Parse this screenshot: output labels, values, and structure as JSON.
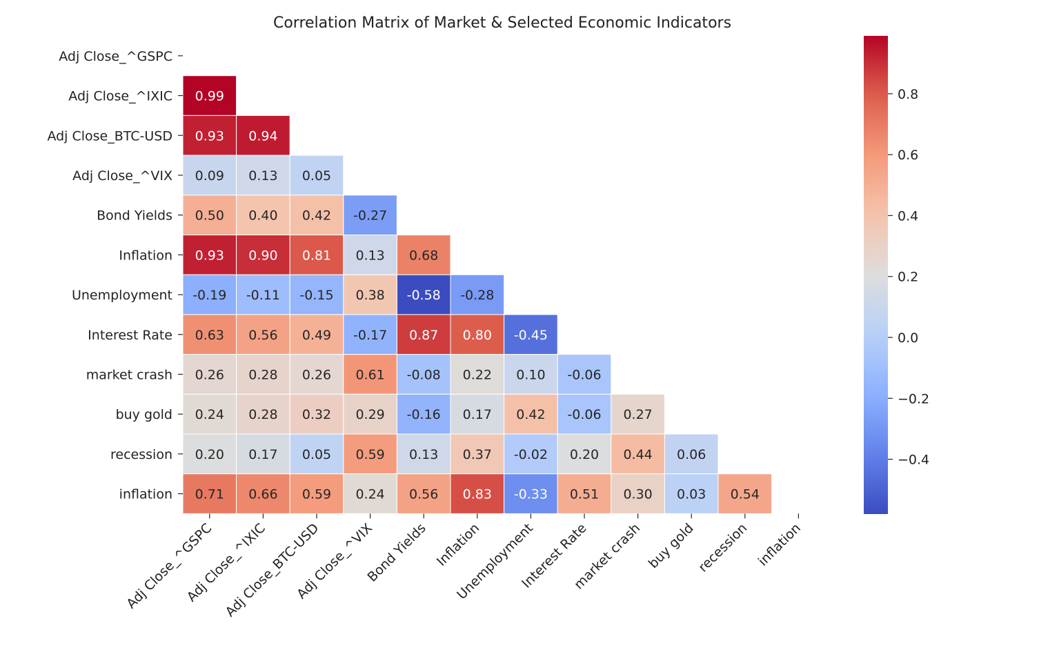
{
  "chart_data": {
    "type": "heatmap",
    "title": "Correlation Matrix of Market & Selected Economic Indicators",
    "labels": [
      "Adj Close_^GSPC",
      "Adj Close_^IXIC",
      "Adj Close_BTC-USD",
      "Adj Close_^VIX",
      "Bond Yields",
      "Inflation",
      "Unemployment",
      "Interest Rate",
      "market crash",
      "buy gold",
      "recession",
      "inflation"
    ],
    "mask": "upper-triangle-including-diagonal",
    "values": [
      [
        null,
        null,
        null,
        null,
        null,
        null,
        null,
        null,
        null,
        null,
        null,
        null
      ],
      [
        0.99,
        null,
        null,
        null,
        null,
        null,
        null,
        null,
        null,
        null,
        null,
        null
      ],
      [
        0.93,
        0.94,
        null,
        null,
        null,
        null,
        null,
        null,
        null,
        null,
        null,
        null
      ],
      [
        0.09,
        0.13,
        0.05,
        null,
        null,
        null,
        null,
        null,
        null,
        null,
        null,
        null
      ],
      [
        0.5,
        0.4,
        0.42,
        -0.27,
        null,
        null,
        null,
        null,
        null,
        null,
        null,
        null
      ],
      [
        0.93,
        0.9,
        0.81,
        0.13,
        0.68,
        null,
        null,
        null,
        null,
        null,
        null,
        null
      ],
      [
        -0.19,
        -0.11,
        -0.15,
        0.38,
        -0.58,
        -0.28,
        null,
        null,
        null,
        null,
        null,
        null
      ],
      [
        0.63,
        0.56,
        0.49,
        -0.17,
        0.87,
        0.8,
        -0.45,
        null,
        null,
        null,
        null,
        null
      ],
      [
        0.26,
        0.28,
        0.26,
        0.61,
        -0.08,
        0.22,
        0.1,
        -0.06,
        null,
        null,
        null,
        null
      ],
      [
        0.24,
        0.28,
        0.32,
        0.29,
        -0.16,
        0.17,
        0.42,
        -0.06,
        0.27,
        null,
        null,
        null
      ],
      [
        0.2,
        0.17,
        0.05,
        0.59,
        0.13,
        0.37,
        -0.02,
        0.2,
        0.44,
        0.06,
        null,
        null
      ],
      [
        0.71,
        0.66,
        0.59,
        0.24,
        0.56,
        0.83,
        -0.33,
        0.51,
        0.3,
        0.03,
        0.54,
        null
      ]
    ],
    "colormap": "coolwarm",
    "vmin": -0.58,
    "vmax": 0.99,
    "colorbar_ticks": [
      0.8,
      0.6,
      0.4,
      0.2,
      0.0,
      -0.2,
      -0.4
    ],
    "colorbar_tick_labels": [
      "0.8",
      "0.6",
      "0.4",
      "0.2",
      "0.0",
      "−0.2",
      "−0.4"
    ],
    "annotation_format": "2 decimals",
    "cell_border_color": "#ffffff",
    "legend_placement": "right colorbar"
  }
}
